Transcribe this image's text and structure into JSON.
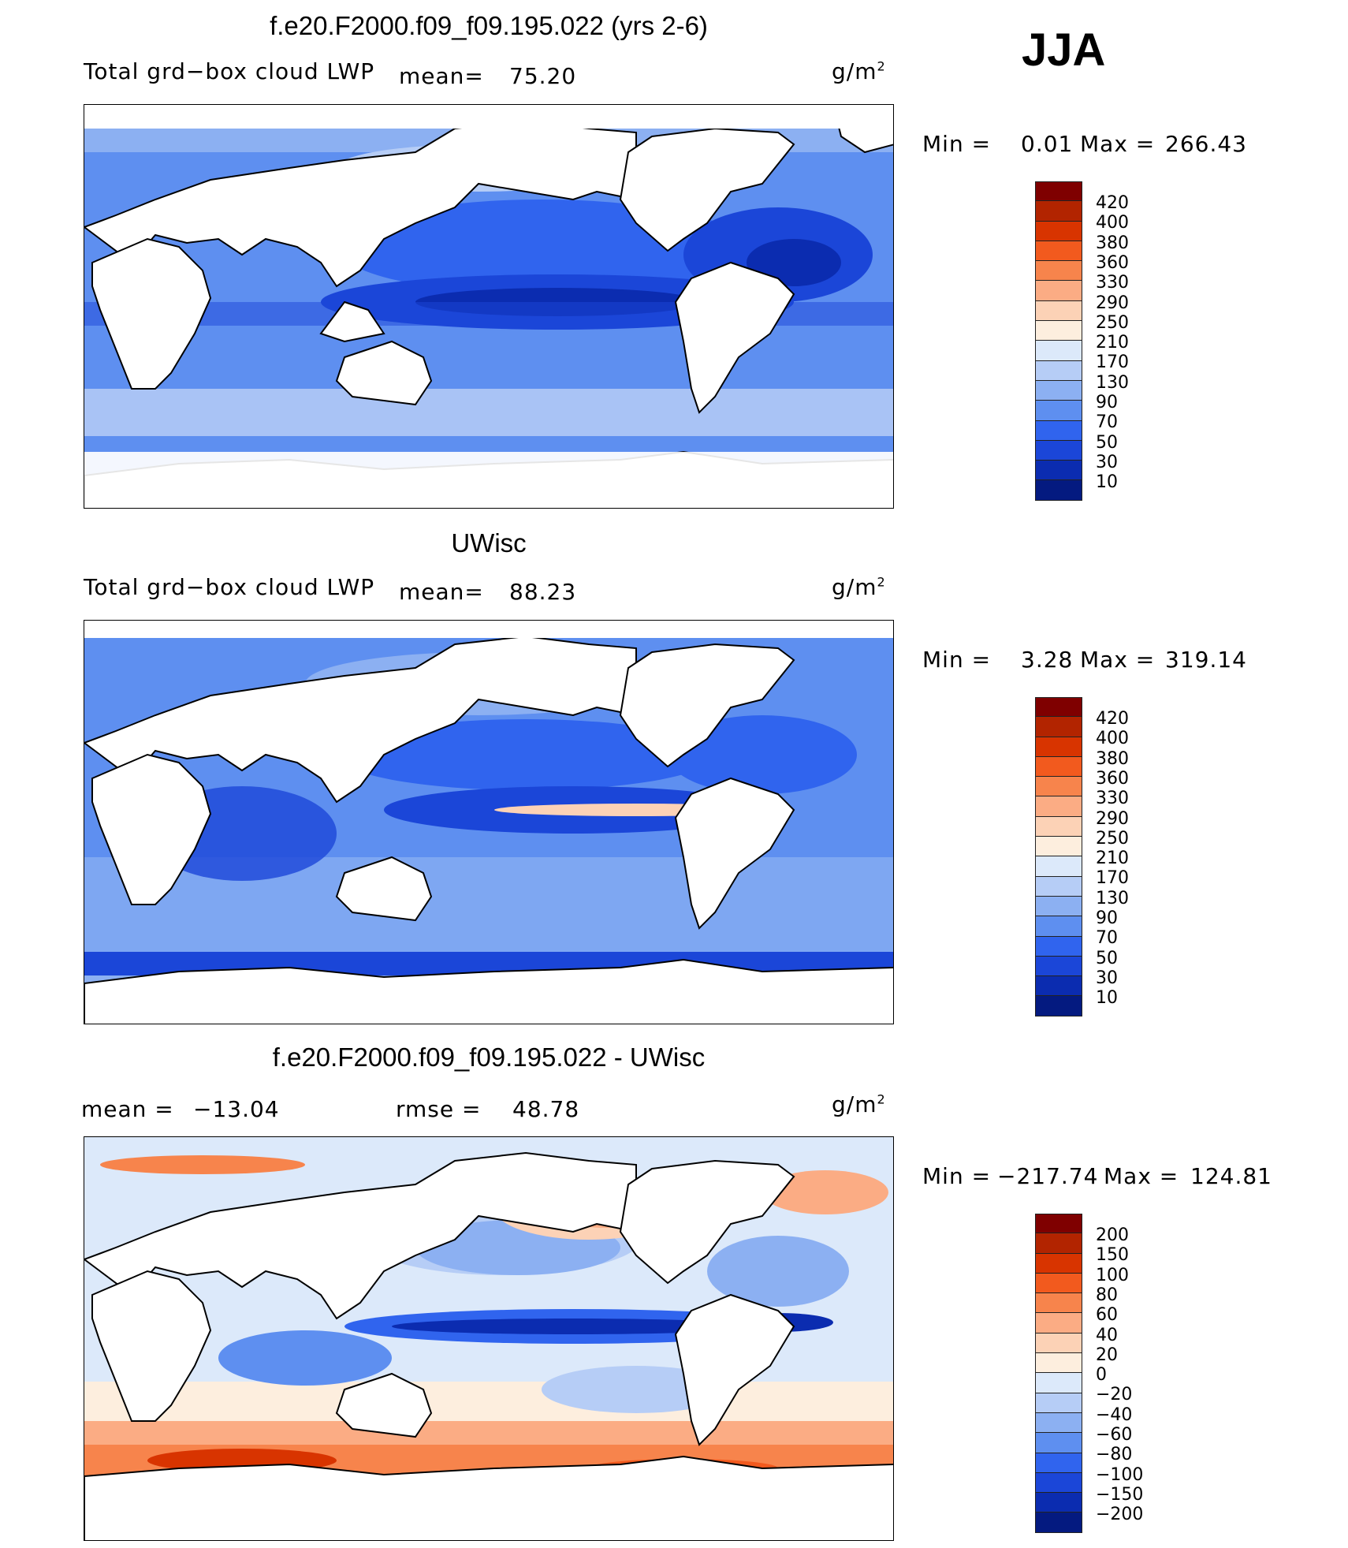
{
  "season": "JJA",
  "panels": [
    {
      "title": "f.e20.F2000.f09_f09.195.022 (yrs 2-6)",
      "variable": "Total grd−box cloud LWP",
      "mean_label": "mean=",
      "mean_value": "75.20",
      "units": "g/m",
      "units_sup": "2",
      "min_label": "Min =",
      "min_value": "0.01",
      "max_label": "Max =",
      "max_value": "266.43",
      "colorbar": [
        "420",
        "400",
        "380",
        "360",
        "330",
        "290",
        "250",
        "210",
        "170",
        "130",
        "90",
        "70",
        "50",
        "30",
        "10"
      ]
    },
    {
      "title": "UWisc",
      "variable": "Total grd−box cloud LWP",
      "mean_label": "mean=",
      "mean_value": "88.23",
      "units": "g/m",
      "units_sup": "2",
      "min_label": "Min =",
      "min_value": "3.28",
      "max_label": "Max =",
      "max_value": "319.14",
      "colorbar": [
        "420",
        "400",
        "380",
        "360",
        "330",
        "290",
        "250",
        "210",
        "170",
        "130",
        "90",
        "70",
        "50",
        "30",
        "10"
      ]
    },
    {
      "title": "f.e20.F2000.f09_f09.195.022 - UWisc",
      "mean_label": "mean =",
      "mean_value": "−13.04",
      "rmse_label": "rmse =",
      "rmse_value": "48.78",
      "units": "g/m",
      "units_sup": "2",
      "min_label": "Min =",
      "min_value": "−217.74",
      "max_label": "Max =",
      "max_value": "124.81",
      "colorbar": [
        "200",
        "150",
        "100",
        "80",
        "60",
        "40",
        "20",
        "0",
        "−20",
        "−40",
        "−60",
        "−80",
        "−100",
        "−150",
        "−200"
      ]
    }
  ],
  "colors": {
    "scale_abs": [
      "#7f0000",
      "#b22400",
      "#d83400",
      "#f25a1e",
      "#f7844c",
      "#fbac84",
      "#fcd2b6",
      "#fdeede",
      "#dce9fa",
      "#b6cdf6",
      "#8cb0f2",
      "#5e8ff0",
      "#3064ee",
      "#1b46d8",
      "#0b2cb0",
      "#041a80"
    ],
    "scale_diff": [
      "#7f0000",
      "#b22400",
      "#d83400",
      "#f25a1e",
      "#f7844c",
      "#fbac84",
      "#fcd2b6",
      "#fdeede",
      "#dce9fa",
      "#b6cdf6",
      "#8cb0f2",
      "#5e8ff0",
      "#3064ee",
      "#1b46d8",
      "#0b2cb0",
      "#041a80"
    ]
  }
}
